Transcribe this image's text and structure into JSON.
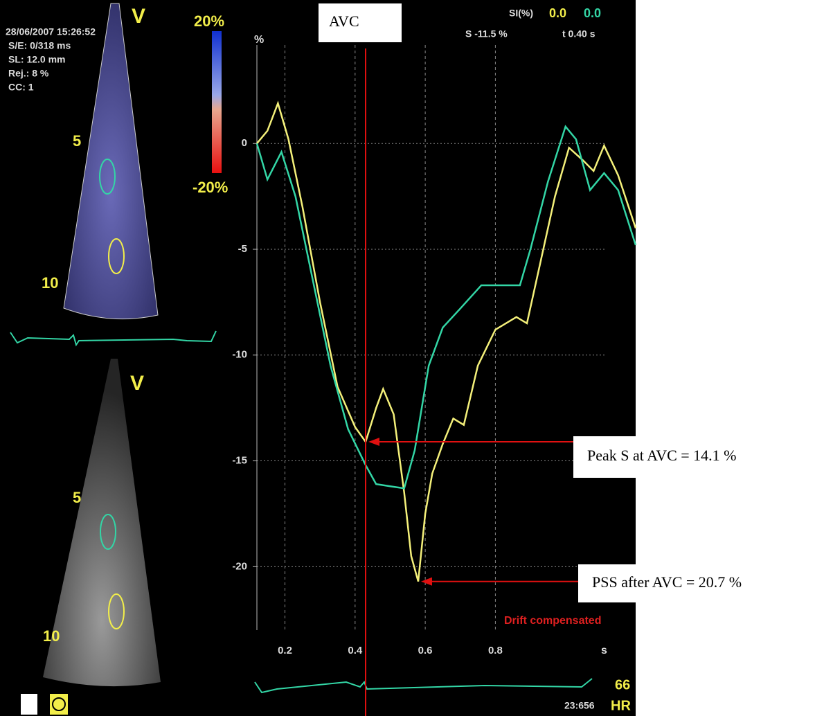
{
  "screen": {
    "timestamp": "28/06/2007 15:26:52",
    "info": [
      "S/E: 0/318 ms",
      "SL: 12.0 mm",
      "Rej.: 8 %",
      "CC: 1"
    ],
    "view_top": "V",
    "view_bottom": "V",
    "scale_max": "20%",
    "scale_min": "-20%",
    "depth_top": [
      "5",
      "10"
    ],
    "depth_bottom": [
      "5",
      "10"
    ],
    "si_label": "SI(%)",
    "si_values": [
      "0.0",
      "0.0"
    ],
    "cursor_strain": "S -11.5 %",
    "cursor_time": "t 0.40 s",
    "drift": "Drift compensated",
    "hr_value": "66",
    "hr_label": "HR",
    "time_code": "23:656"
  },
  "annotations": {
    "avc": "AVC",
    "peak": "Peak S at AVC = 14.1 %",
    "pss": "PSS after AVC = 20.7 %"
  },
  "chart_data": {
    "type": "line",
    "y_label": "%",
    "x_label": "s",
    "xlim": [
      0.12,
      1.2
    ],
    "ylim": [
      -23,
      4
    ],
    "xticks": [
      0.2,
      0.4,
      0.6,
      0.8
    ],
    "yticks": [
      0,
      -5,
      -10,
      -15,
      -20
    ],
    "grid": true,
    "avc_x": 0.43,
    "series": [
      {
        "name": "yellow",
        "color": "#f4f07a",
        "x": [
          0.12,
          0.15,
          0.18,
          0.21,
          0.25,
          0.3,
          0.35,
          0.4,
          0.43,
          0.46,
          0.48,
          0.51,
          0.54,
          0.56,
          0.58,
          0.6,
          0.62,
          0.65,
          0.68,
          0.71,
          0.75,
          0.8,
          0.86,
          0.89,
          0.93,
          0.97,
          1.01,
          1.05,
          1.08,
          1.11,
          1.15,
          1.2
        ],
        "values": [
          0,
          0.6,
          1.9,
          0.2,
          -3,
          -7.5,
          -11.5,
          -13.4,
          -14.1,
          -12.5,
          -11.6,
          -12.8,
          -16.5,
          -19.5,
          -20.7,
          -17.5,
          -15.6,
          -14.2,
          -13.0,
          -13.3,
          -10.5,
          -8.8,
          -8.2,
          -8.5,
          -5.5,
          -2.5,
          -0.2,
          -0.8,
          -1.3,
          -0.1,
          -1.5,
          -4.0
        ]
      },
      {
        "name": "green",
        "color": "#33d6a6",
        "x": [
          0.12,
          0.15,
          0.19,
          0.23,
          0.28,
          0.33,
          0.38,
          0.43,
          0.46,
          0.5,
          0.54,
          0.57,
          0.61,
          0.65,
          0.7,
          0.76,
          0.82,
          0.87,
          0.9,
          0.95,
          1.0,
          1.03,
          1.07,
          1.11,
          1.15,
          1.2
        ],
        "values": [
          0,
          -1.7,
          -0.4,
          -2.5,
          -6.5,
          -10.5,
          -13.5,
          -15.2,
          -16.1,
          -16.2,
          -16.3,
          -14.5,
          -10.5,
          -8.7,
          -7.8,
          -6.7,
          -6.7,
          -6.7,
          -5.0,
          -1.8,
          0.8,
          0.2,
          -2.2,
          -1.4,
          -2.2,
          -4.8
        ]
      }
    ]
  }
}
